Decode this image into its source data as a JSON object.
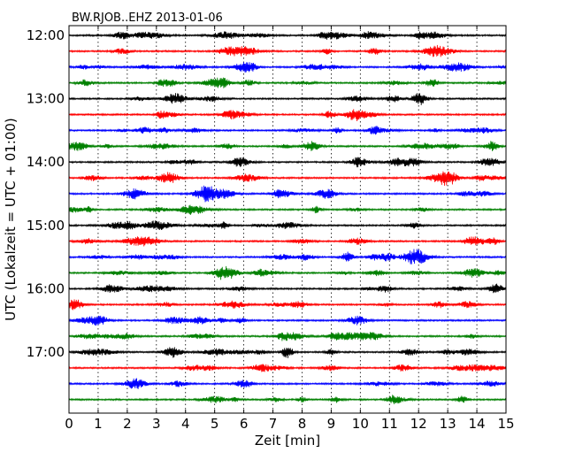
{
  "chart_data": {
    "type": "line",
    "title": "BW.RJOB..EHZ 2013-01-06",
    "xlabel": "Zeit  [min]",
    "ylabel": "UTC (Lokalzeit = UTC + 01:00)",
    "xlim": [
      0,
      15
    ],
    "xticks": [
      "0",
      "1",
      "2",
      "3",
      "4",
      "5",
      "6",
      "7",
      "8",
      "9",
      "10",
      "11",
      "12",
      "13",
      "14",
      "15"
    ],
    "yticks": [
      {
        "label": "12:00",
        "row": 0
      },
      {
        "label": "13:00",
        "row": 4
      },
      {
        "label": "14:00",
        "row": 8
      },
      {
        "label": "15:00",
        "row": 12
      },
      {
        "label": "16:00",
        "row": 16
      },
      {
        "label": "17:00",
        "row": 20
      }
    ],
    "trace_count": 24,
    "trace_colors": [
      "#000000",
      "#ff0000",
      "#0000ff",
      "#008000"
    ],
    "grid": "x-dotted"
  }
}
